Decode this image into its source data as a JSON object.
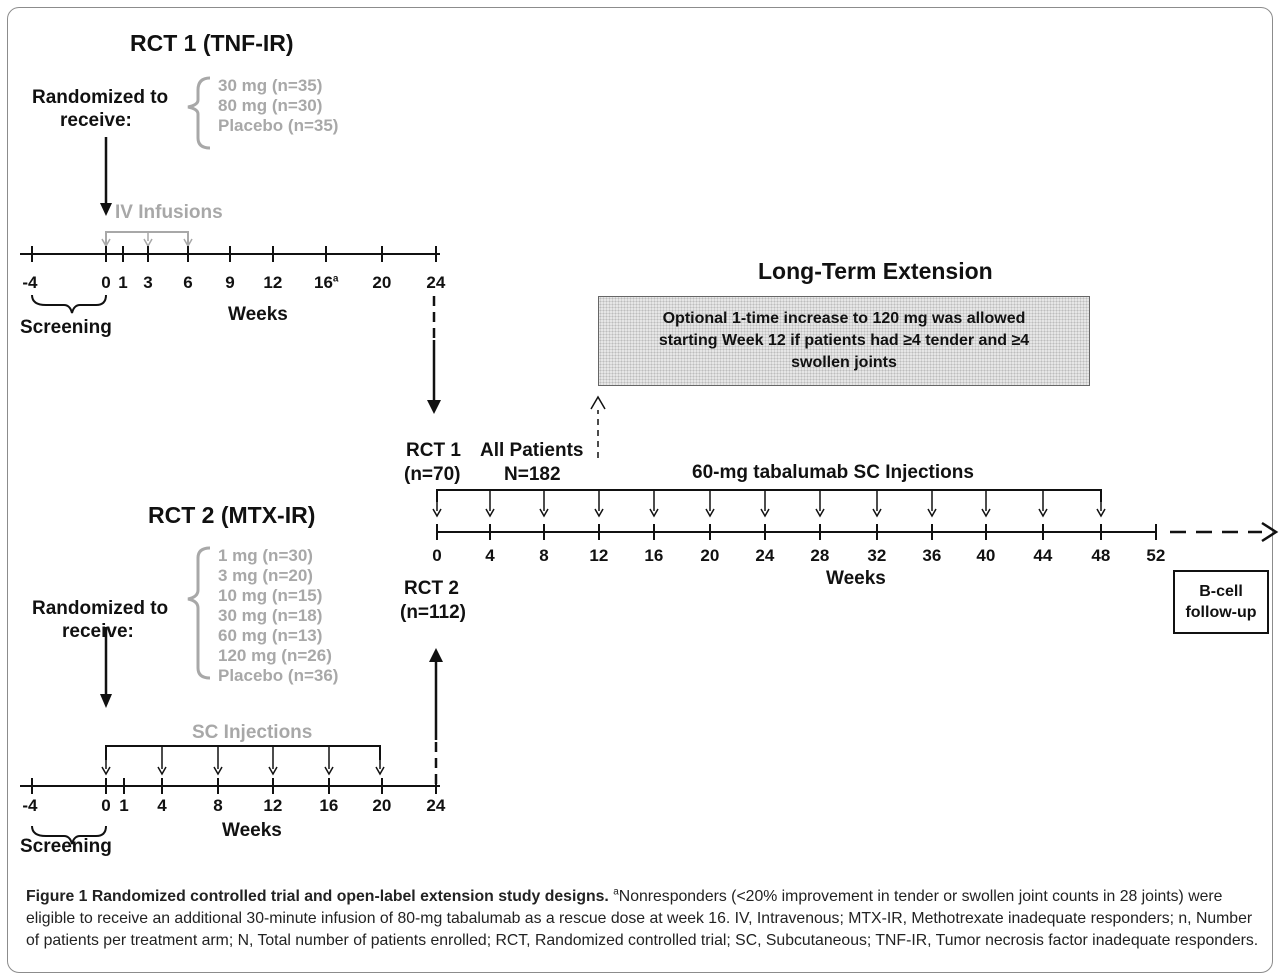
{
  "rct1": {
    "title": "RCT 1 (TNF-IR)",
    "randomized_line1": "Randomized to",
    "randomized_line2": "receive:",
    "arms": [
      "30 mg (n=35)",
      "80 mg (n=30)",
      "Placebo (n=35)"
    ],
    "infusion_label": "IV Infusions",
    "ticks": [
      "-4",
      "0",
      "1",
      "3",
      "6",
      "9",
      "12",
      "16",
      "20",
      "24"
    ],
    "tick_sup": "a",
    "weeks_label": "Weeks",
    "screening_label": "Screening"
  },
  "rct2": {
    "title": "RCT 2 (MTX-IR)",
    "randomized_line1": "Randomized to",
    "randomized_line2": "receive:",
    "arms": [
      "1 mg (n=30)",
      "3 mg (n=20)",
      "10 mg (n=15)",
      "30 mg (n=18)",
      "60 mg (n=13)",
      "120 mg (n=26)",
      "Placebo (n=36)"
    ],
    "injection_label": "SC Injections",
    "ticks": [
      "-4",
      "0",
      "1",
      "4",
      "8",
      "12",
      "16",
      "20",
      "24"
    ],
    "weeks_label": "Weeks",
    "screening_label": "Screening"
  },
  "extension": {
    "title": "Long-Term Extension",
    "box_text_lines": [
      "Optional 1-time increase to 120 mg was allowed",
      "starting Week 12 if patients had ≥4 tender and ≥4",
      "swollen joints"
    ],
    "rct1_line1": "RCT 1",
    "rct1_line2": "(n=70)",
    "all_patients_line1": "All Patients",
    "all_patients_line2": "N=182",
    "rct2_line1": "RCT 2",
    "rct2_line2": "(n=112)",
    "injection_label": "60-mg tabalumab SC Injections",
    "ticks": [
      "0",
      "4",
      "8",
      "12",
      "16",
      "20",
      "24",
      "28",
      "32",
      "36",
      "40",
      "44",
      "48",
      "52"
    ],
    "weeks_label": "Weeks",
    "bcell_line1": "B-cell",
    "bcell_line2": "follow-up"
  },
  "caption": {
    "figure_label": "Figure 1 Randomized controlled trial and open-label extension study designs.",
    "sup": "a",
    "body": "Nonresponders (<20% improvement in tender or swollen joint counts in 28 joints) were eligible to receive an additional 30-minute infusion of 80-mg tabalumab as a rescue dose at week 16. IV, Intravenous; MTX-IR, Methotrexate inadequate responders; n, Number of patients per treatment arm; N, Total number of patients enrolled; RCT, Randomized controlled trial; SC, Subcutaneous; TNF-IR, Tumor necrosis factor inadequate responders."
  },
  "colors": {
    "ink": "#111111",
    "gray": "#a8a8a8",
    "box_fill": "#e6e6e6"
  }
}
